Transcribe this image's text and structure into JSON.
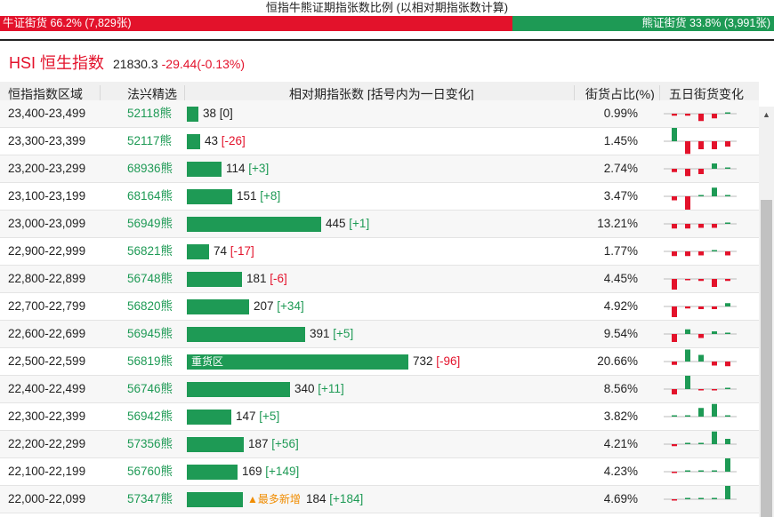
{
  "header": {
    "title": "恒指牛熊证期指张数比例 (以相对期指张数计算)",
    "bull_label": "牛证街货 66.2% (7,829张)",
    "bear_label": "熊证街货 33.8% (3,991张)",
    "bull_ratio": 0.662
  },
  "index": {
    "name": "HSI 恒生指数",
    "value": "21830.3",
    "change": "-29.44(-0.13%)"
  },
  "columns": {
    "range": "恒指指数区域",
    "code": "法兴精选",
    "contracts": "相对期指张数 [括号内为一日变化]",
    "pct": "街货占比(%)",
    "trend": "五日街货变化"
  },
  "scale_max_contracts": 732,
  "colors": {
    "bull_red": "#e3122b",
    "bear_green": "#1e9a55",
    "new_orange": "#f08c00"
  },
  "rows": [
    {
      "range": "23,400-23,499",
      "code": "52118熊",
      "contracts": 38,
      "count": "38",
      "delta": "[0]",
      "delta_sign": 0,
      "pct": "0.99%",
      "trend": [
        -0.15,
        -0.15,
        -0.55,
        -0.35,
        0.08
      ],
      "label": "",
      "tag": ""
    },
    {
      "range": "23,300-23,399",
      "code": "52117熊",
      "contracts": 43,
      "count": "43",
      "delta": "[-26]",
      "delta_sign": -1,
      "pct": "1.45%",
      "trend": [
        1.0,
        -0.95,
        -0.6,
        -0.6,
        -0.4
      ],
      "label": "",
      "tag": ""
    },
    {
      "range": "23,200-23,299",
      "code": "68936熊",
      "contracts": 114,
      "count": "114",
      "delta": "[+3]",
      "delta_sign": 1,
      "pct": "2.74%",
      "trend": [
        -0.25,
        -0.55,
        -0.4,
        0.4,
        0.05
      ],
      "label": "",
      "tag": ""
    },
    {
      "range": "23,100-23,199",
      "code": "68164熊",
      "contracts": 151,
      "count": "151",
      "delta": "[+8]",
      "delta_sign": 1,
      "pct": "3.47%",
      "trend": [
        -0.3,
        -1.0,
        0.05,
        0.65,
        0.1
      ],
      "label": "",
      "tag": ""
    },
    {
      "range": "23,000-23,099",
      "code": "56949熊",
      "contracts": 445,
      "count": "445",
      "delta": "[+1]",
      "delta_sign": 1,
      "pct": "13.21%",
      "trend": [
        -0.35,
        -0.35,
        -0.3,
        -0.3,
        0.05
      ],
      "label": "",
      "tag": ""
    },
    {
      "range": "22,900-22,999",
      "code": "56821熊",
      "contracts": 74,
      "count": "74",
      "delta": "[-17]",
      "delta_sign": -1,
      "pct": "1.77%",
      "trend": [
        -0.35,
        -0.35,
        -0.3,
        0.1,
        -0.3
      ],
      "label": "",
      "tag": ""
    },
    {
      "range": "22,800-22,899",
      "code": "56748熊",
      "contracts": 181,
      "count": "181",
      "delta": "[-6]",
      "delta_sign": -1,
      "pct": "4.45%",
      "trend": [
        -0.8,
        -0.1,
        -0.15,
        -0.6,
        -0.15
      ],
      "label": "",
      "tag": ""
    },
    {
      "range": "22,700-22,799",
      "code": "56820熊",
      "contracts": 207,
      "count": "207",
      "delta": "[+34]",
      "delta_sign": 1,
      "pct": "4.92%",
      "trend": [
        -0.8,
        -0.15,
        -0.2,
        -0.2,
        0.25
      ],
      "label": "",
      "tag": ""
    },
    {
      "range": "22,600-22,699",
      "code": "56945熊",
      "contracts": 391,
      "count": "391",
      "delta": "[+5]",
      "delta_sign": 1,
      "pct": "9.54%",
      "trend": [
        -0.6,
        0.35,
        -0.3,
        0.2,
        0.05
      ],
      "label": "",
      "tag": ""
    },
    {
      "range": "22,500-22,599",
      "code": "56819熊",
      "contracts": 732,
      "count": "732",
      "delta": "[-96]",
      "delta_sign": -1,
      "pct": "20.66%",
      "trend": [
        -0.25,
        0.9,
        0.5,
        -0.3,
        -0.35
      ],
      "label": "重货区",
      "tag": ""
    },
    {
      "range": "22,400-22,499",
      "code": "56746熊",
      "contracts": 340,
      "count": "340",
      "delta": "[+11]",
      "delta_sign": 1,
      "pct": "8.56%",
      "trend": [
        -0.4,
        1.0,
        -0.1,
        -0.1,
        0.05
      ],
      "label": "",
      "tag": ""
    },
    {
      "range": "22,300-22,399",
      "code": "56942熊",
      "contracts": 147,
      "count": "147",
      "delta": "[+5]",
      "delta_sign": 1,
      "pct": "3.82%",
      "trend": [
        0.0,
        0.0,
        0.65,
        0.95,
        0.05
      ],
      "label": "",
      "tag": ""
    },
    {
      "range": "22,200-22,299",
      "code": "57356熊",
      "contracts": 187,
      "count": "187",
      "delta": "[+56]",
      "delta_sign": 1,
      "pct": "4.21%",
      "trend": [
        -0.15,
        0.0,
        0.0,
        0.95,
        0.4
      ],
      "label": "",
      "tag": ""
    },
    {
      "range": "22,100-22,199",
      "code": "56760熊",
      "contracts": 169,
      "count": "169",
      "delta": "[+149]",
      "delta_sign": 1,
      "pct": "4.23%",
      "trend": [
        -0.08,
        0.0,
        0.0,
        0.05,
        1.0
      ],
      "label": "",
      "tag": ""
    },
    {
      "range": "22,000-22,099",
      "code": "57347熊",
      "contracts": 184,
      "count": "184",
      "delta": "[+184]",
      "delta_sign": 1,
      "pct": "4.69%",
      "trend": [
        -0.08,
        0.0,
        0.0,
        0.0,
        1.0
      ],
      "label": "",
      "tag": "▲最多新增"
    }
  ]
}
